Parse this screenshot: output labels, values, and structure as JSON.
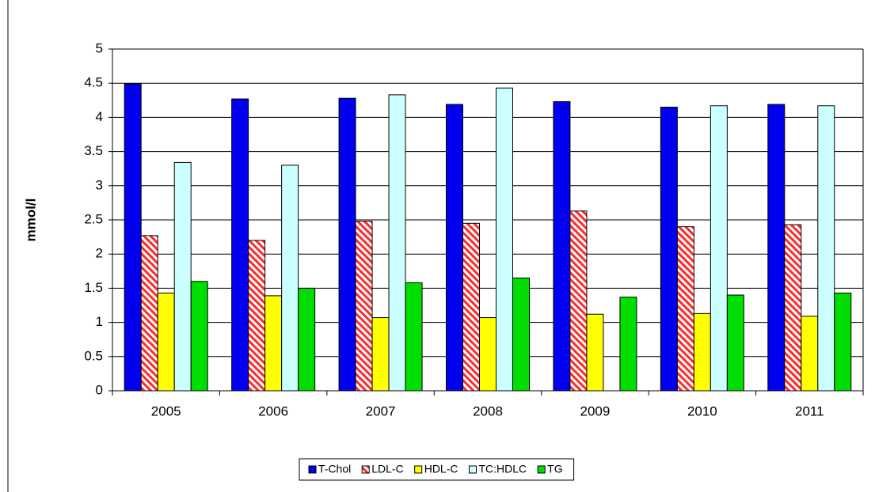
{
  "chart_data": {
    "type": "bar",
    "y_label": "mmol/l",
    "categories": [
      "2005",
      "2006",
      "2007",
      "2008",
      "2009",
      "2010",
      "2011"
    ],
    "series": [
      {
        "name": "T-Chol",
        "color": "#0000ee",
        "values": [
          4.49,
          4.27,
          4.28,
          4.19,
          4.23,
          4.15,
          4.19
        ]
      },
      {
        "name": "LDL-C",
        "color": "#ff2a2a",
        "hatch": true,
        "values": [
          2.27,
          2.2,
          2.48,
          2.45,
          2.63,
          2.4,
          2.43
        ]
      },
      {
        "name": "HDL-C",
        "color": "#ffff00",
        "values": [
          1.43,
          1.39,
          1.07,
          1.07,
          1.12,
          1.13,
          1.09
        ]
      },
      {
        "name": "TC:HDLC",
        "color": "#ccffff",
        "values": [
          3.34,
          3.3,
          4.33,
          4.43,
          null,
          4.17,
          4.17
        ]
      },
      {
        "name": "TG",
        "color": "#00dd00",
        "values": [
          1.6,
          1.5,
          1.58,
          1.65,
          1.37,
          1.4,
          1.43
        ]
      }
    ],
    "ylim": [
      0,
      5
    ],
    "yticks": [
      0,
      0.5,
      1,
      1.5,
      2,
      2.5,
      3,
      3.5,
      4,
      4.5,
      5
    ],
    "grid": true,
    "legend": "bottom"
  }
}
